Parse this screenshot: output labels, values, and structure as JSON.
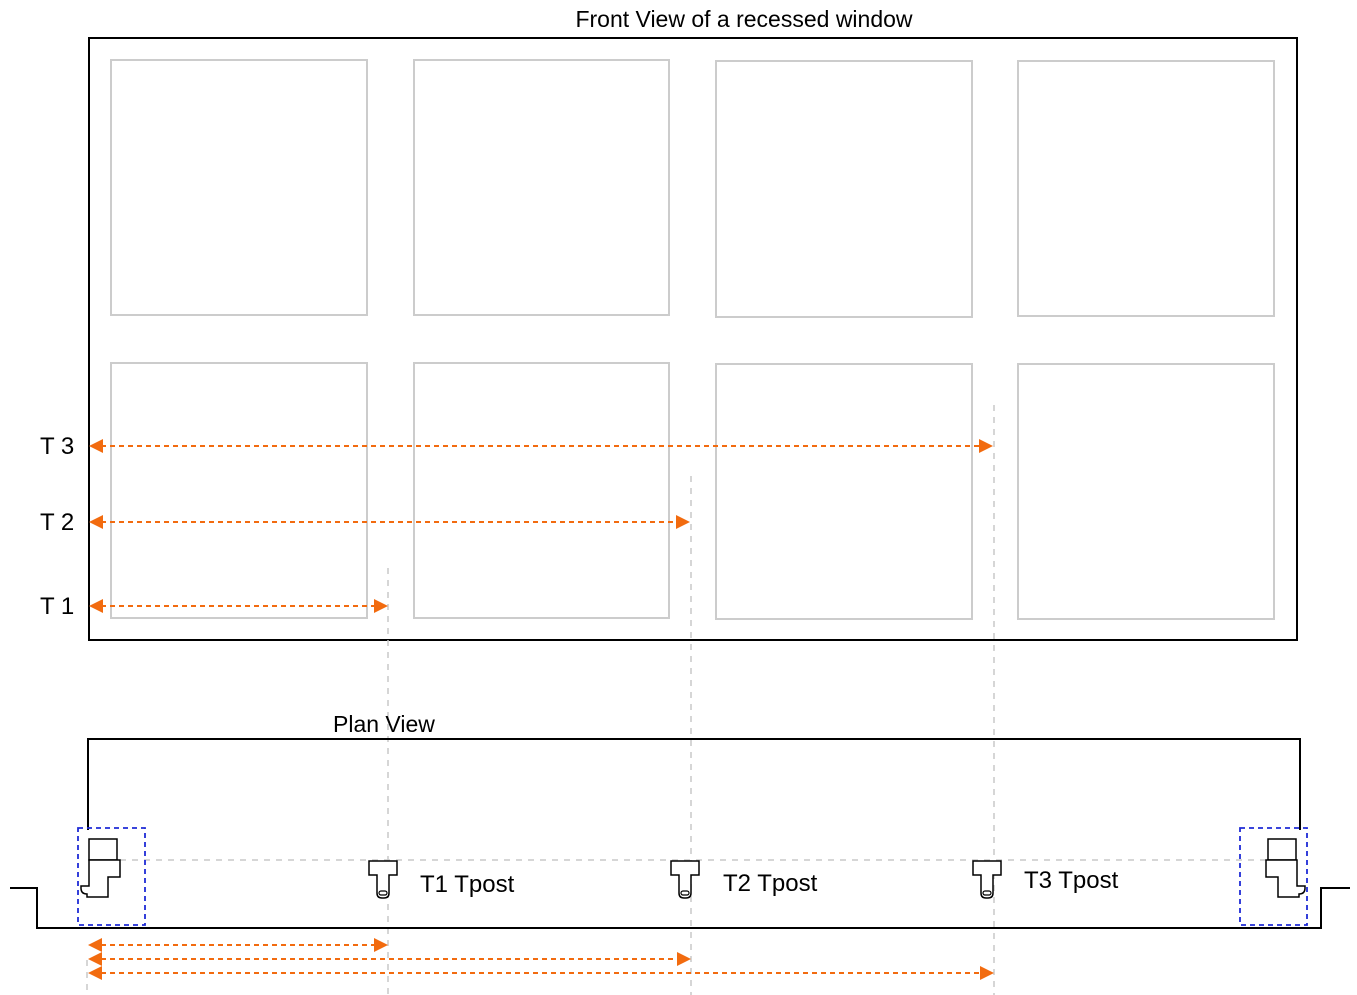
{
  "front_view": {
    "title": "Front View of a recessed window",
    "dimension_labels": [
      "T 3",
      "T 2",
      "T 1"
    ]
  },
  "plan_view": {
    "title": "Plan View",
    "post_labels": [
      "T1 Tpost",
      "T2 Tpost",
      "T3 Tpost"
    ]
  },
  "colors": {
    "dimension_arrows": "#f26b0f",
    "detail_boxes": "#1f2bd6",
    "panes": "#cccccc",
    "guides": "#c8c8c8"
  }
}
